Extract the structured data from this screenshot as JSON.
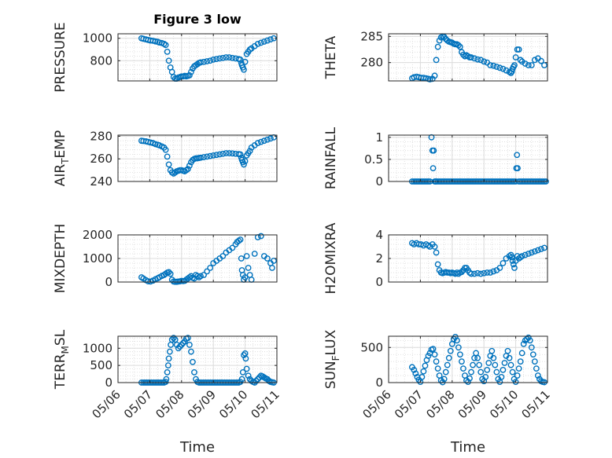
{
  "figure": {
    "title": "Figure 3 low",
    "marker_color": "#0072bd",
    "grid": "minor dotted"
  },
  "chart_data": [
    {
      "type": "scatter",
      "name": "pressure",
      "ylabel": "PRESSURE",
      "xlim": [
        0,
        5
      ],
      "ylim": [
        620,
        1040
      ],
      "yticks": [
        800,
        1000
      ],
      "x": [
        0.74,
        0.8,
        0.88,
        0.95,
        1.02,
        1.1,
        1.18,
        1.25,
        1.3,
        1.38,
        1.45,
        1.5,
        1.55,
        1.6,
        1.65,
        1.7,
        1.75,
        1.8,
        1.85,
        1.9,
        1.95,
        2.0,
        2.05,
        2.1,
        2.15,
        2.2,
        2.25,
        2.3,
        2.35,
        2.4,
        2.45,
        2.5,
        2.55,
        2.6,
        2.7,
        2.8,
        2.9,
        3.0,
        3.1,
        3.2,
        3.3,
        3.4,
        3.5,
        3.6,
        3.7,
        3.8,
        3.85,
        3.88,
        3.9,
        3.93,
        3.96,
        4.0,
        4.05,
        4.1,
        4.15,
        4.2,
        4.3,
        4.4,
        4.5,
        4.6,
        4.7,
        4.8,
        4.9
      ],
      "y": [
        1000,
        995,
        990,
        985,
        980,
        978,
        972,
        968,
        962,
        958,
        950,
        940,
        880,
        800,
        740,
        700,
        655,
        640,
        640,
        650,
        655,
        660,
        660,
        665,
        660,
        665,
        670,
        700,
        730,
        750,
        760,
        770,
        780,
        785,
        790,
        795,
        800,
        810,
        815,
        820,
        825,
        830,
        830,
        825,
        820,
        815,
        810,
        780,
        760,
        740,
        720,
        790,
        860,
        880,
        900,
        910,
        930,
        950,
        960,
        970,
        980,
        990,
        1000
      ]
    },
    {
      "type": "scatter",
      "name": "theta",
      "ylabel": "THETA",
      "xlim": [
        0,
        5
      ],
      "ylim": [
        276.5,
        285.5
      ],
      "yticks": [
        280,
        285
      ],
      "x": [
        0.74,
        0.8,
        0.88,
        0.95,
        1.02,
        1.1,
        1.18,
        1.25,
        1.3,
        1.38,
        1.45,
        1.5,
        1.55,
        1.6,
        1.65,
        1.7,
        1.75,
        1.8,
        1.85,
        1.9,
        1.95,
        2.0,
        2.05,
        2.1,
        2.15,
        2.2,
        2.25,
        2.3,
        2.35,
        2.4,
        2.45,
        2.5,
        2.55,
        2.6,
        2.7,
        2.8,
        2.9,
        3.0,
        3.1,
        3.2,
        3.3,
        3.4,
        3.5,
        3.6,
        3.7,
        3.8,
        3.85,
        3.88,
        3.9,
        3.93,
        3.96,
        4.0,
        4.05,
        4.1,
        4.15,
        4.2,
        4.3,
        4.4,
        4.5,
        4.6,
        4.7,
        4.8,
        4.9
      ],
      "y": [
        277,
        277.2,
        277.3,
        277.2,
        277.1,
        277.1,
        277,
        276.9,
        276.8,
        276.9,
        277.5,
        280.5,
        283,
        284.2,
        284.8,
        285,
        284.9,
        284.5,
        284.2,
        284,
        283.9,
        283.8,
        283.6,
        283.5,
        283.5,
        283.3,
        283,
        282,
        281.5,
        281.2,
        281.4,
        281.2,
        281,
        281,
        280.8,
        280.6,
        280.5,
        280.2,
        280,
        279.5,
        279.4,
        279.2,
        279,
        278.8,
        278.5,
        278.2,
        278,
        278.3,
        278.8,
        279.2,
        279.5,
        281,
        282.5,
        282.5,
        280.5,
        280.2,
        279.8,
        279.5,
        279.5,
        280.5,
        280.8,
        280.3,
        279.5
      ]
    },
    {
      "type": "scatter",
      "name": "air_temp",
      "ylabel": "AIR_TEMP",
      "xlim": [
        0,
        5
      ],
      "ylim": [
        240,
        281
      ],
      "yticks": [
        240,
        260,
        280
      ],
      "x": [
        0.74,
        0.8,
        0.88,
        0.95,
        1.02,
        1.1,
        1.18,
        1.25,
        1.3,
        1.38,
        1.45,
        1.5,
        1.55,
        1.6,
        1.65,
        1.7,
        1.75,
        1.8,
        1.85,
        1.9,
        1.95,
        2.0,
        2.05,
        2.1,
        2.15,
        2.2,
        2.25,
        2.3,
        2.35,
        2.4,
        2.45,
        2.5,
        2.55,
        2.6,
        2.7,
        2.8,
        2.9,
        3.0,
        3.1,
        3.2,
        3.3,
        3.4,
        3.5,
        3.6,
        3.7,
        3.8,
        3.85,
        3.88,
        3.9,
        3.93,
        3.96,
        4.0,
        4.05,
        4.1,
        4.15,
        4.2,
        4.3,
        4.4,
        4.5,
        4.6,
        4.7,
        4.8,
        4.9
      ],
      "y": [
        276,
        275.8,
        275.5,
        275,
        274.5,
        274,
        273,
        272.5,
        272,
        271,
        270,
        268,
        262,
        255,
        250,
        248,
        247,
        248,
        249,
        249.5,
        250,
        250,
        249.5,
        249,
        250,
        251,
        254,
        257,
        259,
        260,
        260.5,
        260.5,
        260.8,
        261,
        261.5,
        262,
        262.5,
        263,
        263.5,
        264,
        264.5,
        265,
        265,
        264.8,
        264.5,
        264.2,
        264,
        261,
        259,
        257,
        255,
        258,
        263,
        265,
        267,
        270,
        272,
        274,
        275,
        276,
        277,
        278,
        279
      ]
    },
    {
      "type": "scatter",
      "name": "rainfall",
      "ylabel": "RAINFALL",
      "xlim": [
        0,
        5
      ],
      "ylim": [
        0,
        1.05
      ],
      "yticks": [
        0,
        0.5,
        1
      ],
      "x": [
        0.74,
        0.8,
        0.85,
        0.9,
        0.95,
        1.0,
        1.05,
        1.1,
        1.15,
        1.2,
        1.25,
        1.3,
        1.35,
        1.38,
        1.4,
        1.42,
        1.45,
        1.48,
        1.5,
        1.55,
        1.6,
        1.65,
        1.7,
        1.75,
        1.8,
        1.85,
        1.9,
        1.95,
        2.0,
        2.05,
        2.1,
        2.15,
        2.2,
        2.25,
        2.3,
        2.35,
        2.4,
        2.45,
        2.5,
        2.55,
        2.6,
        2.65,
        2.7,
        2.75,
        2.8,
        2.85,
        2.9,
        2.95,
        3.0,
        3.05,
        3.1,
        3.15,
        3.2,
        3.25,
        3.3,
        3.35,
        3.4,
        3.45,
        3.5,
        3.55,
        3.6,
        3.65,
        3.7,
        3.75,
        3.8,
        3.85,
        3.9,
        3.95,
        4.0,
        4.02,
        4.04,
        4.06,
        4.1,
        4.15,
        4.2,
        4.25,
        4.3,
        4.35,
        4.4,
        4.45,
        4.5,
        4.55,
        4.6,
        4.65,
        4.7,
        4.75,
        4.8,
        4.85,
        4.9,
        4.95
      ],
      "y": [
        0,
        0,
        0,
        0,
        0,
        0,
        0,
        0,
        0,
        0,
        0,
        0,
        1,
        0.7,
        0.3,
        0.7,
        0,
        0,
        0,
        0,
        0,
        0,
        0,
        0,
        0,
        0,
        0,
        0,
        0,
        0,
        0,
        0,
        0,
        0,
        0,
        0,
        0,
        0,
        0,
        0,
        0,
        0,
        0,
        0,
        0,
        0,
        0,
        0,
        0,
        0,
        0,
        0,
        0,
        0,
        0,
        0,
        0,
        0,
        0,
        0,
        0,
        0,
        0,
        0,
        0,
        0,
        0,
        0,
        0,
        0.3,
        0.6,
        0.3,
        0,
        0,
        0,
        0,
        0,
        0,
        0,
        0,
        0,
        0,
        0,
        0,
        0,
        0,
        0,
        0,
        0,
        0
      ]
    },
    {
      "type": "scatter",
      "name": "mixdepth",
      "ylabel": "MIXDEPTH",
      "xlim": [
        0,
        5
      ],
      "ylim": [
        0,
        2000
      ],
      "yticks": [
        0,
        1000,
        2000
      ],
      "x": [
        0.74,
        0.8,
        0.88,
        0.95,
        1.02,
        1.1,
        1.18,
        1.25,
        1.3,
        1.38,
        1.45,
        1.5,
        1.55,
        1.6,
        1.65,
        1.7,
        1.75,
        1.8,
        1.85,
        1.9,
        1.95,
        2.0,
        2.05,
        2.1,
        2.15,
        2.2,
        2.25,
        2.3,
        2.35,
        2.4,
        2.45,
        2.5,
        2.55,
        2.6,
        2.7,
        2.8,
        2.9,
        3.0,
        3.1,
        3.2,
        3.3,
        3.4,
        3.5,
        3.6,
        3.7,
        3.75,
        3.8,
        3.85,
        3.88,
        3.9,
        3.93,
        3.96,
        4.0,
        4.05,
        4.1,
        4.15,
        4.2,
        4.3,
        4.4,
        4.5,
        4.6,
        4.7,
        4.8,
        4.85,
        4.9
      ],
      "y": [
        200,
        150,
        80,
        30,
        20,
        60,
        120,
        160,
        200,
        260,
        300,
        350,
        400,
        420,
        350,
        100,
        20,
        10,
        10,
        20,
        30,
        50,
        40,
        50,
        100,
        150,
        200,
        250,
        180,
        150,
        300,
        250,
        200,
        250,
        300,
        450,
        600,
        800,
        900,
        1000,
        1100,
        1250,
        1350,
        1450,
        1600,
        1700,
        1750,
        1800,
        1000,
        500,
        300,
        100,
        200,
        1100,
        600,
        300,
        100,
        1200,
        1900,
        1950,
        1100,
        1000,
        800,
        600,
        900
      ]
    },
    {
      "type": "scatter",
      "name": "h2omixra",
      "ylabel": "H2OMIXRA",
      "xlim": [
        0,
        5
      ],
      "ylim": [
        0,
        4
      ],
      "yticks": [
        0,
        2,
        4
      ],
      "x": [
        0.74,
        0.8,
        0.88,
        0.95,
        1.02,
        1.1,
        1.18,
        1.25,
        1.3,
        1.38,
        1.45,
        1.5,
        1.55,
        1.6,
        1.65,
        1.7,
        1.75,
        1.8,
        1.85,
        1.9,
        1.95,
        2.0,
        2.05,
        2.1,
        2.15,
        2.2,
        2.25,
        2.3,
        2.35,
        2.4,
        2.45,
        2.5,
        2.55,
        2.6,
        2.7,
        2.8,
        2.9,
        3.0,
        3.1,
        3.2,
        3.3,
        3.4,
        3.5,
        3.6,
        3.7,
        3.8,
        3.85,
        3.88,
        3.9,
        3.93,
        3.96,
        4.0,
        4.05,
        4.1,
        4.15,
        4.2,
        4.3,
        4.4,
        4.5,
        4.6,
        4.7,
        4.8,
        4.9
      ],
      "y": [
        3.3,
        3.2,
        3.3,
        3.2,
        3.2,
        3.1,
        3.2,
        3.1,
        3.0,
        3.2,
        3.0,
        2.5,
        1.5,
        1.0,
        0.8,
        0.75,
        0.8,
        0.85,
        0.8,
        0.8,
        0.75,
        0.8,
        0.75,
        0.7,
        0.8,
        0.7,
        0.8,
        0.85,
        1.0,
        1.2,
        1.2,
        1.0,
        0.8,
        0.7,
        0.7,
        0.75,
        0.7,
        0.75,
        0.8,
        0.8,
        0.9,
        1.0,
        1.2,
        1.6,
        2.0,
        2.2,
        2.3,
        2.1,
        1.8,
        1.5,
        1.2,
        1.8,
        2.2,
        2.0,
        2.1,
        2.2,
        2.3,
        2.4,
        2.5,
        2.6,
        2.7,
        2.8,
        2.9
      ]
    },
    {
      "type": "scatter",
      "name": "terr_msl",
      "ylabel": "TERR_MSL",
      "xlim": [
        0,
        5
      ],
      "ylim": [
        0,
        1350
      ],
      "yticks": [
        0,
        500,
        1000
      ],
      "x": [
        0.74,
        0.8,
        0.85,
        0.9,
        0.95,
        1.0,
        1.05,
        1.1,
        1.15,
        1.2,
        1.25,
        1.3,
        1.35,
        1.4,
        1.45,
        1.5,
        1.52,
        1.55,
        1.58,
        1.6,
        1.63,
        1.66,
        1.7,
        1.75,
        1.8,
        1.85,
        1.9,
        1.95,
        2.0,
        2.05,
        2.1,
        2.15,
        2.2,
        2.25,
        2.3,
        2.35,
        2.4,
        2.45,
        2.5,
        2.55,
        2.6,
        2.65,
        2.7,
        2.75,
        2.8,
        2.85,
        2.9,
        2.95,
        3.0,
        3.05,
        3.1,
        3.15,
        3.2,
        3.25,
        3.3,
        3.35,
        3.4,
        3.45,
        3.5,
        3.55,
        3.6,
        3.65,
        3.7,
        3.75,
        3.8,
        3.85,
        3.9,
        3.93,
        3.96,
        4.0,
        4.02,
        4.05,
        4.1,
        4.15,
        4.2,
        4.25,
        4.3,
        4.35,
        4.4,
        4.45,
        4.5,
        4.55,
        4.6,
        4.65,
        4.7,
        4.75,
        4.8,
        4.85,
        4.9
      ],
      "y": [
        0,
        0,
        0,
        0,
        0,
        0,
        0,
        0,
        0,
        0,
        0,
        0,
        0,
        0,
        0,
        20,
        100,
        300,
        500,
        700,
        900,
        1100,
        1250,
        1300,
        1250,
        1100,
        1000,
        1050,
        1100,
        1150,
        1200,
        1280,
        1300,
        1100,
        900,
        600,
        300,
        100,
        20,
        0,
        0,
        0,
        0,
        0,
        0,
        0,
        0,
        0,
        0,
        0,
        0,
        0,
        0,
        0,
        0,
        0,
        0,
        0,
        0,
        0,
        0,
        0,
        0,
        0,
        0,
        20,
        100,
        300,
        800,
        850,
        700,
        400,
        200,
        100,
        50,
        20,
        0,
        50,
        100,
        150,
        200,
        180,
        150,
        120,
        100,
        50,
        20,
        10,
        0
      ]
    },
    {
      "type": "scatter",
      "name": "sun_flux",
      "ylabel": "SUN_FLUX",
      "xlim": [
        0,
        5
      ],
      "ylim": [
        0,
        660
      ],
      "yticks": [
        0,
        500
      ],
      "x": [
        0.74,
        0.8,
        0.85,
        0.9,
        0.95,
        1.0,
        1.05,
        1.1,
        1.15,
        1.2,
        1.25,
        1.3,
        1.35,
        1.4,
        1.45,
        1.5,
        1.55,
        1.6,
        1.65,
        1.7,
        1.75,
        1.8,
        1.85,
        1.9,
        1.95,
        2.0,
        2.05,
        2.1,
        2.15,
        2.2,
        2.25,
        2.3,
        2.35,
        2.4,
        2.45,
        2.5,
        2.55,
        2.6,
        2.65,
        2.7,
        2.75,
        2.8,
        2.85,
        2.9,
        2.95,
        3.0,
        3.05,
        3.1,
        3.15,
        3.2,
        3.25,
        3.3,
        3.35,
        3.4,
        3.45,
        3.5,
        3.55,
        3.6,
        3.65,
        3.7,
        3.75,
        3.8,
        3.85,
        3.9,
        3.95,
        4.0,
        4.05,
        4.1,
        4.15,
        4.2,
        4.25,
        4.3,
        4.35,
        4.4,
        4.45,
        4.5,
        4.55,
        4.6,
        4.65,
        4.7,
        4.75,
        4.8,
        4.85,
        4.9
      ],
      "y": [
        220,
        180,
        130,
        80,
        40,
        10,
        80,
        160,
        240,
        320,
        380,
        420,
        470,
        480,
        400,
        300,
        200,
        100,
        30,
        5,
        50,
        150,
        250,
        350,
        450,
        550,
        620,
        650,
        600,
        500,
        400,
        300,
        200,
        100,
        30,
        10,
        60,
        150,
        250,
        350,
        420,
        350,
        250,
        150,
        50,
        20,
        80,
        180,
        280,
        380,
        450,
        350,
        250,
        150,
        50,
        10,
        80,
        180,
        280,
        380,
        450,
        350,
        250,
        150,
        50,
        10,
        100,
        200,
        300,
        420,
        550,
        600,
        620,
        640,
        600,
        500,
        400,
        300,
        200,
        100,
        50,
        20,
        10,
        5
      ]
    }
  ],
  "x_axis": {
    "ticks": [
      0,
      1,
      2,
      3,
      4,
      5
    ],
    "ticklabels": [
      "05/06",
      "05/07",
      "05/08",
      "05/09",
      "05/10",
      "05/11"
    ],
    "label": "Time"
  }
}
